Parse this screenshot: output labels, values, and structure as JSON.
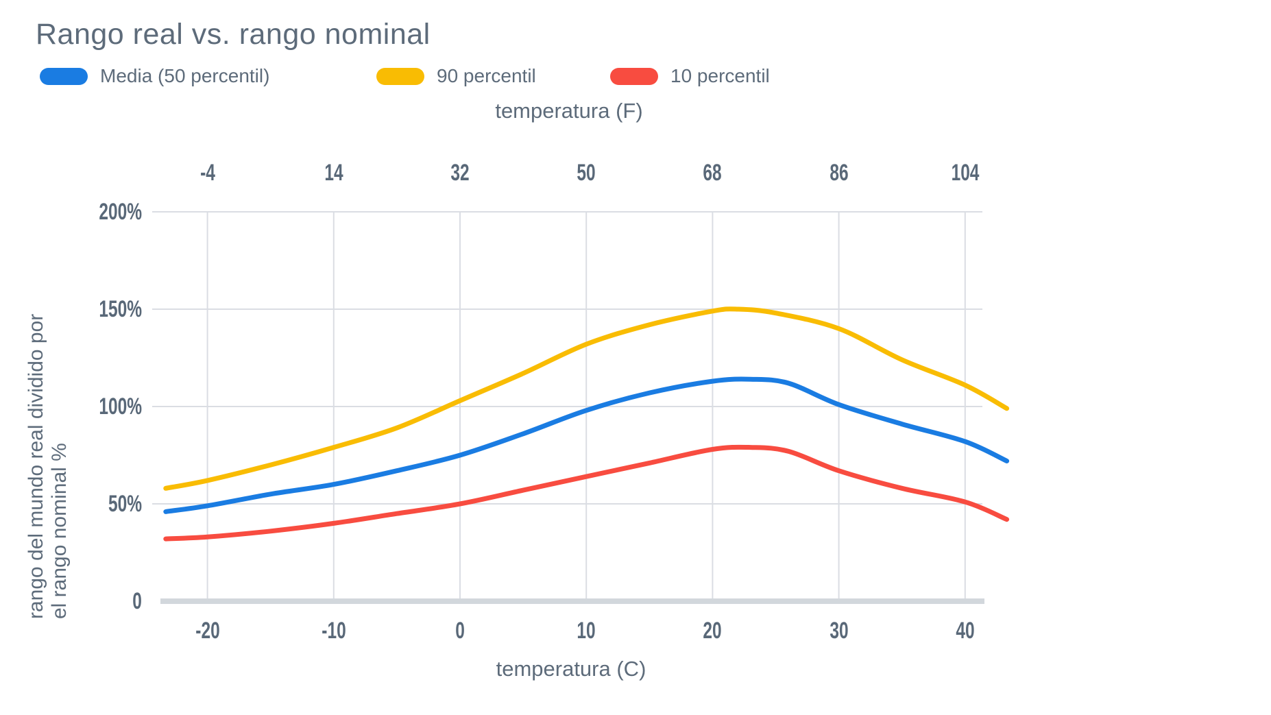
{
  "palette": {
    "text": "#5d6b7a",
    "tick_text": "#596878",
    "grid_line": "#dadde3",
    "axis_line": "#d2d7dc",
    "background": "#ffffff"
  },
  "chart_data": {
    "type": "line",
    "title": "Rango real vs. rango nominal",
    "legend_position": "top",
    "grid": true,
    "x_range_c": [
      -23.3,
      43.3
    ],
    "y_range": [
      0,
      200
    ],
    "x_axis_bottom": {
      "title": "temperatura (C)",
      "ticks": [
        -20,
        -10,
        0,
        10,
        20,
        30,
        40
      ]
    },
    "x_axis_top": {
      "title": "temperatura (F)",
      "ticks": [
        -4,
        14,
        32,
        50,
        68,
        86,
        104
      ]
    },
    "y_axis": {
      "title_line1": "rango del mundo real dividido por",
      "title_line2": "el rango nominal %",
      "tick_labels": [
        "0",
        "50%",
        "100%",
        "150%",
        "200%"
      ],
      "tick_values": [
        0,
        50,
        100,
        150,
        200
      ]
    },
    "series": [
      {
        "name": "Media (50 percentil)",
        "color": "#1a7ce2",
        "points_c_pct": [
          [
            -23.3,
            46
          ],
          [
            -20,
            49
          ],
          [
            -15,
            55
          ],
          [
            -10,
            60
          ],
          [
            -5,
            67
          ],
          [
            0,
            75
          ],
          [
            5,
            86
          ],
          [
            10,
            98
          ],
          [
            15,
            107
          ],
          [
            20,
            113
          ],
          [
            23,
            114
          ],
          [
            26,
            112
          ],
          [
            30,
            101
          ],
          [
            35,
            91
          ],
          [
            40,
            82
          ],
          [
            43.3,
            72
          ]
        ]
      },
      {
        "name": "90 percentil",
        "color": "#f9bc03",
        "points_c_pct": [
          [
            -23.3,
            58
          ],
          [
            -20,
            62
          ],
          [
            -15,
            70
          ],
          [
            -10,
            79
          ],
          [
            -5,
            89
          ],
          [
            0,
            103
          ],
          [
            5,
            117
          ],
          [
            10,
            132
          ],
          [
            15,
            142
          ],
          [
            20,
            149
          ],
          [
            22,
            150
          ],
          [
            25,
            148
          ],
          [
            30,
            140
          ],
          [
            35,
            124
          ],
          [
            40,
            111
          ],
          [
            43.3,
            99
          ]
        ]
      },
      {
        "name": "10 percentil",
        "color": "#f84c40",
        "points_c_pct": [
          [
            -23.3,
            32
          ],
          [
            -20,
            33
          ],
          [
            -15,
            36
          ],
          [
            -10,
            40
          ],
          [
            -5,
            45
          ],
          [
            0,
            50
          ],
          [
            5,
            57
          ],
          [
            10,
            64
          ],
          [
            15,
            71
          ],
          [
            20,
            78
          ],
          [
            23,
            79
          ],
          [
            26,
            77
          ],
          [
            30,
            67
          ],
          [
            35,
            58
          ],
          [
            40,
            51
          ],
          [
            43.3,
            42
          ]
        ]
      }
    ]
  }
}
